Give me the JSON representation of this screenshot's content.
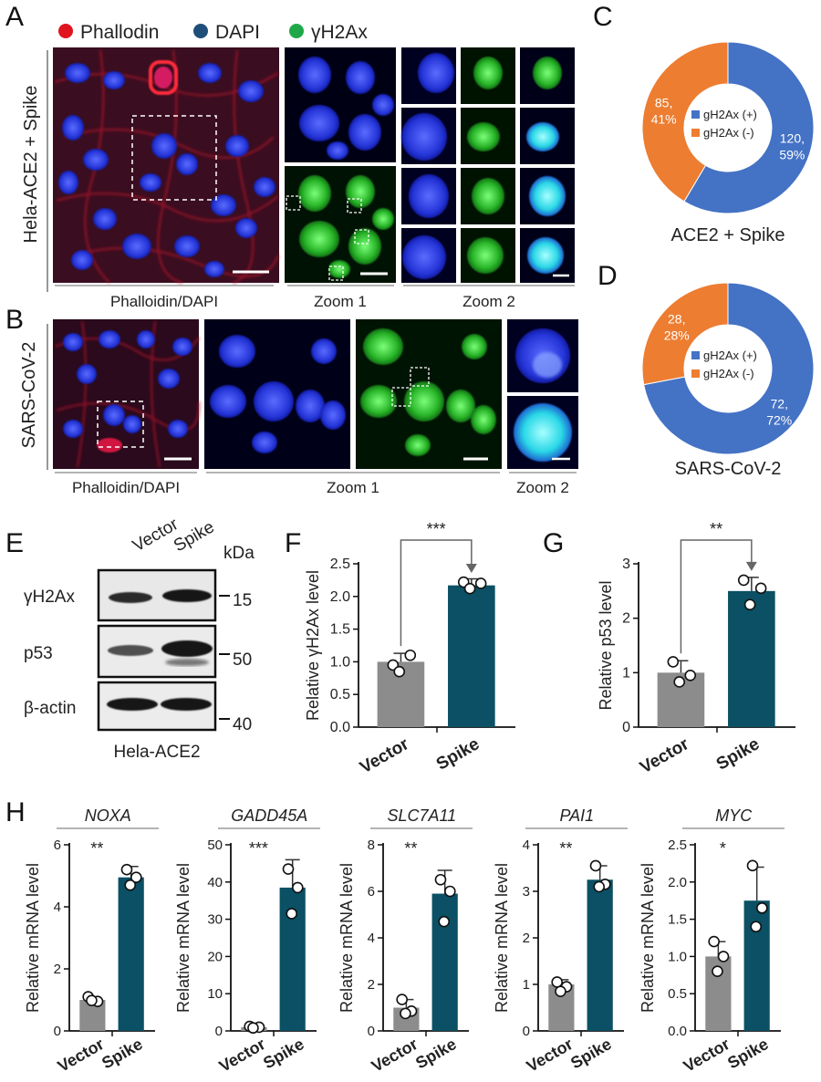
{
  "panels": {
    "A": "A",
    "B": "B",
    "C": "C",
    "D": "D",
    "E": "E",
    "F": "F",
    "G": "G",
    "H": "H"
  },
  "panelA": {
    "legend": [
      {
        "label": "Phallodin",
        "color": "#e0141e"
      },
      {
        "label": "DAPI",
        "color": "#1f4e79"
      },
      {
        "label": "γH2Ax",
        "color": "#1fa84a"
      }
    ],
    "side_label": "Hela-ACE2 + Spike",
    "captions": [
      "Phalloidin/DAPI",
      "Zoom 1",
      "Zoom 2"
    ]
  },
  "panelB": {
    "side_label": "SARS-CoV-2",
    "captions": [
      "Phalloidin/DAPI",
      "Zoom 1",
      "Zoom 2"
    ]
  },
  "panelE": {
    "lanes": [
      "Vector",
      "Spike"
    ],
    "kda_label": "kDa",
    "rows": [
      {
        "name": "γH2Ax",
        "kda": "15"
      },
      {
        "name": "p53",
        "kda": "50"
      },
      {
        "name": "β-actin",
        "kda": "40"
      }
    ],
    "cell_line": "Hela-ACE2"
  },
  "chart_data": [
    {
      "id": "C",
      "type": "pie",
      "caption": "ACE2 + Spike",
      "slices": [
        {
          "name": "gH2Ax (+)",
          "value": 120,
          "percent": "59%",
          "color": "#4472c4"
        },
        {
          "name": "gH2Ax (-)",
          "value": 85,
          "percent": "41%",
          "color": "#ed7d31"
        }
      ]
    },
    {
      "id": "D",
      "type": "pie",
      "caption": "SARS-CoV-2",
      "slices": [
        {
          "name": "gH2Ax (+)",
          "value": 72,
          "percent": "72%",
          "color": "#4472c4"
        },
        {
          "name": "gH2Ax (-)",
          "value": 28,
          "percent": "28%",
          "color": "#ed7d31"
        }
      ]
    },
    {
      "id": "F",
      "type": "bar",
      "categories": [
        "Vector",
        "Spike"
      ],
      "values": [
        1.0,
        2.17
      ],
      "errors": [
        0.13,
        0.1
      ],
      "points": [
        [
          0.95,
          1.1,
          0.85
        ],
        [
          2.22,
          2.2,
          2.12
        ]
      ],
      "ylabel": "Relative γH2Ax level",
      "ylim": [
        0,
        2.5
      ],
      "yticks": [
        "0.0",
        "0.5",
        "1.0",
        "1.5",
        "2.0",
        "2.5"
      ],
      "sig": "***"
    },
    {
      "id": "G",
      "type": "bar",
      "categories": [
        "Vector",
        "Spike"
      ],
      "values": [
        1.0,
        2.5
      ],
      "errors": [
        0.22,
        0.25
      ],
      "points": [
        [
          1.2,
          0.95,
          0.83
        ],
        [
          2.7,
          2.55,
          2.25
        ]
      ],
      "ylabel": "Relative p53 level",
      "ylim": [
        0,
        3
      ],
      "yticks": [
        "0",
        "1",
        "2",
        "3"
      ],
      "sig": "**"
    },
    {
      "id": "H1",
      "type": "bar",
      "gene": "NOXA",
      "categories": [
        "Vector",
        "Spike"
      ],
      "values": [
        1.0,
        4.95
      ],
      "errors": [
        0.1,
        0.35
      ],
      "points": [
        [
          1.1,
          0.95,
          0.98
        ],
        [
          5.2,
          4.95,
          4.7
        ]
      ],
      "ylabel": "Relative mRNA level",
      "ylim": [
        0,
        6
      ],
      "yticks": [
        "0",
        "2",
        "4",
        "6"
      ],
      "sig": "**"
    },
    {
      "id": "H2",
      "type": "bar",
      "gene": "GADD45A",
      "categories": [
        "Vector",
        "Spike"
      ],
      "values": [
        1.0,
        38.5
      ],
      "errors": [
        0.3,
        7.5
      ],
      "points": [
        [
          1.2,
          1.0,
          0.8
        ],
        [
          43.5,
          38.5,
          31.5
        ]
      ],
      "ylabel": "Relative mRNA level",
      "ylim": [
        0,
        50
      ],
      "yticks": [
        "0",
        "10",
        "20",
        "30",
        "40",
        "50"
      ],
      "sig": "***"
    },
    {
      "id": "H3",
      "type": "bar",
      "gene": "SLC7A11",
      "categories": [
        "Vector",
        "Spike"
      ],
      "values": [
        1.0,
        5.9
      ],
      "errors": [
        0.35,
        1.0
      ],
      "points": [
        [
          1.35,
          0.85,
          0.75
        ],
        [
          6.5,
          6.0,
          4.7
        ]
      ],
      "ylabel": "Relative mRNA level",
      "ylim": [
        0,
        8
      ],
      "yticks": [
        "0",
        "2",
        "4",
        "6",
        "8"
      ],
      "sig": "**"
    },
    {
      "id": "H4",
      "type": "bar",
      "gene": "PAI1",
      "categories": [
        "Vector",
        "Spike"
      ],
      "values": [
        1.0,
        3.25
      ],
      "errors": [
        0.1,
        0.3
      ],
      "points": [
        [
          1.05,
          0.95,
          0.85
        ],
        [
          3.55,
          3.15,
          3.1
        ]
      ],
      "ylabel": "Relative mRNA level",
      "ylim": [
        0,
        4
      ],
      "yticks": [
        "0",
        "1",
        "2",
        "3",
        "4"
      ],
      "sig": "**"
    },
    {
      "id": "H5",
      "type": "bar",
      "gene": "MYC",
      "categories": [
        "Vector",
        "Spike"
      ],
      "values": [
        1.0,
        1.75
      ],
      "errors": [
        0.2,
        0.45
      ],
      "points": [
        [
          1.2,
          1.0,
          0.8
        ],
        [
          2.22,
          1.65,
          1.4
        ]
      ],
      "ylabel": "Relative mRNA level",
      "ylim": [
        0,
        2.5
      ],
      "yticks": [
        "0.0",
        "0.5",
        "1.0",
        "1.5",
        "2.0",
        "2.5"
      ],
      "sig": "*"
    }
  ],
  "colors": {
    "vector": "#8c8c8c",
    "spike": "#0b5064"
  }
}
